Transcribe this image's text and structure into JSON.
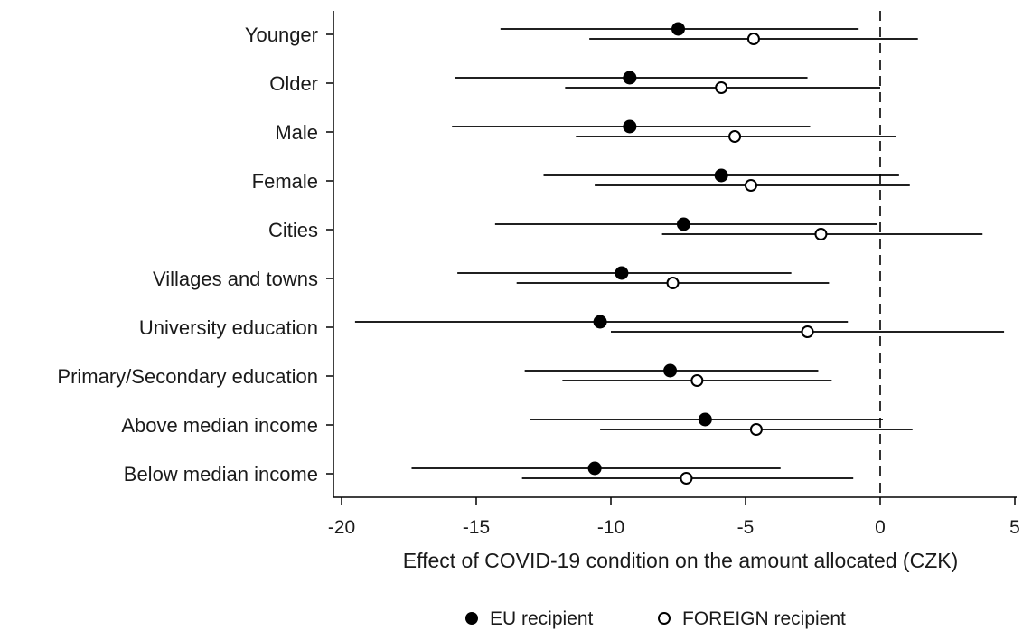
{
  "chart_data": {
    "type": "scatter",
    "subtype": "coefficient-plot-with-confidence-intervals",
    "xlabel": "Effect of COVID-19 condition on the amount allocated (CZK)",
    "ylabel": "",
    "xlim": [
      -20.5,
      5.2
    ],
    "xticks": [
      -20,
      -15,
      -10,
      -5,
      0,
      5
    ],
    "reference_line": {
      "x": 0,
      "style": "dashed"
    },
    "grid": false,
    "legend_position": "bottom-center",
    "categories": [
      "Younger",
      "Older",
      "Male",
      "Female",
      "Cities",
      "Villages and towns",
      "University education",
      "Primary/Secondary education",
      "Above median income",
      "Below median income"
    ],
    "series": [
      {
        "name": "EU recipient",
        "marker": "filled-circle",
        "color": "#000000",
        "estimate": [
          -7.5,
          -9.3,
          -9.3,
          -5.9,
          -7.3,
          -9.6,
          -10.4,
          -7.8,
          -6.5,
          -10.6
        ],
        "ci_low": [
          -14.1,
          -15.8,
          -15.9,
          -12.5,
          -14.3,
          -15.7,
          -19.5,
          -13.2,
          -13.0,
          -17.4
        ],
        "ci_high": [
          -0.8,
          -2.7,
          -2.6,
          0.7,
          -0.1,
          -3.3,
          -1.2,
          -2.3,
          0.1,
          -3.7
        ]
      },
      {
        "name": "FOREIGN recipient",
        "marker": "hollow-circle",
        "color": "#000000",
        "estimate": [
          -4.7,
          -5.9,
          -5.4,
          -4.8,
          -2.2,
          -7.7,
          -2.7,
          -6.8,
          -4.6,
          -7.2
        ],
        "ci_low": [
          -10.8,
          -11.7,
          -11.3,
          -10.6,
          -8.1,
          -13.5,
          -10.0,
          -11.8,
          -10.4,
          -13.3
        ],
        "ci_high": [
          1.4,
          0.0,
          0.6,
          1.1,
          3.8,
          -1.9,
          4.6,
          -1.8,
          1.2,
          -1.0
        ]
      }
    ]
  }
}
